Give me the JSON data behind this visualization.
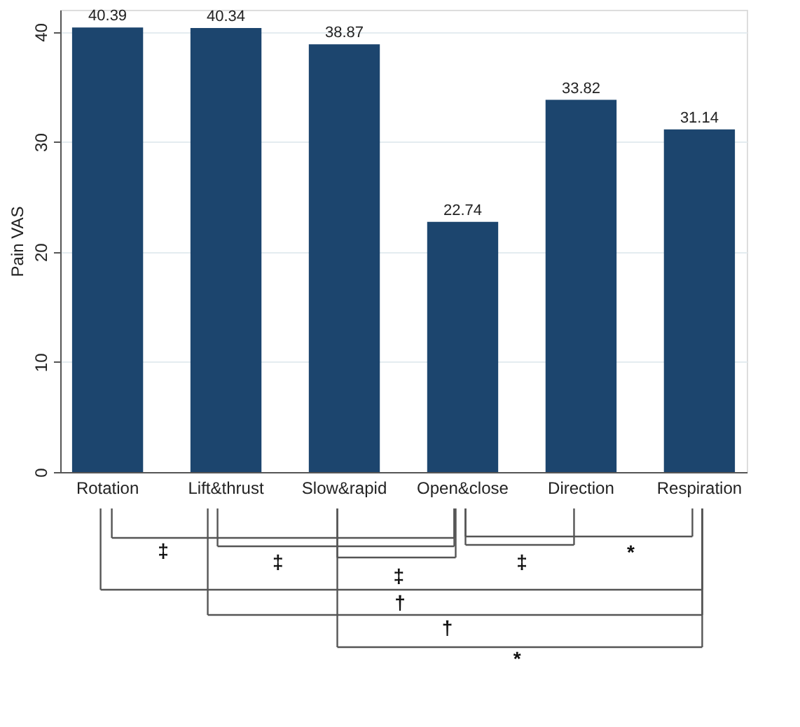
{
  "chart_data": {
    "type": "bar",
    "ylabel": "Pain VAS",
    "categories": [
      "Rotation",
      "Lift&thrust",
      "Slow&rapid",
      "Open&close",
      "Direction",
      "Respiration"
    ],
    "values": [
      40.39,
      40.34,
      38.87,
      22.74,
      33.82,
      31.14
    ],
    "color": "#1c456e",
    "ylim": [
      0,
      42
    ],
    "yticks": [
      0,
      10,
      20,
      30,
      40
    ],
    "grid": "y",
    "data_labels": true,
    "annotations": [
      "‡",
      "‡",
      "‡",
      "‡",
      "*",
      "†",
      "†",
      "*"
    ]
  }
}
